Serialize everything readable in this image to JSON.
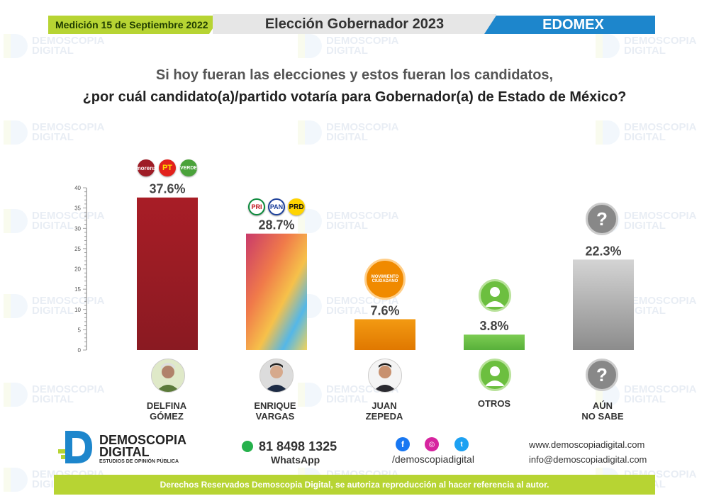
{
  "header": {
    "date_label": "Medición 15 de Septiembre 2022",
    "title": "Elección Gobernador 2023",
    "region": "EDOMEX"
  },
  "question": {
    "line1": "Si hoy fueran las elecciones y estos fueran los candidatos,",
    "line2": "¿por cuál candidato(a)/partido votaría para Gobernador(a) de Estado de México?"
  },
  "chart_data": {
    "type": "bar",
    "categories": [
      "DELFINA GÓMEZ",
      "ENRIQUE VARGAS",
      "JUAN ZEPEDA",
      "OTROS",
      "AÚN NO SABE"
    ],
    "values": [
      37.6,
      28.7,
      7.6,
      3.8,
      22.3
    ],
    "value_labels": [
      "37.6%",
      "28.7%",
      "7.6%",
      "3.8%",
      "22.3%"
    ],
    "ylim": [
      0,
      40
    ],
    "yticks": [
      0,
      5,
      10,
      15,
      20,
      25,
      30,
      35,
      40
    ],
    "colors": [
      "#9e1c26",
      "gradient-rainbow",
      "#f08a00",
      "#6cc04a",
      "#a8a8a8"
    ],
    "grid": false
  },
  "candidates": [
    {
      "name_line1": "DELFINA",
      "name_line2": "GÓMEZ",
      "parties": [
        "morena",
        "PT",
        "VERDE"
      ]
    },
    {
      "name_line1": "ENRIQUE",
      "name_line2": "VARGAS",
      "parties": [
        "PRI",
        "PAN",
        "PRD"
      ]
    },
    {
      "name_line1": "JUAN",
      "name_line2": "ZEPEDA",
      "parties": [
        "MOVIMIENTO CIUDADANO"
      ]
    },
    {
      "name_line1": "OTROS",
      "name_line2": "",
      "parties": []
    },
    {
      "name_line1": "AÚN",
      "name_line2": "NO SABE",
      "parties": []
    }
  ],
  "watermark": {
    "line1": "DEMOSCOPIA",
    "line2": "DIGITAL"
  },
  "footer": {
    "brand_line1": "DEMOSCOPIA",
    "brand_line2": "DIGITAL",
    "brand_tagline": "ESTUDIOS DE OPINIÓN PÚBLICA",
    "phone": "81 8498 1325",
    "phone_label": "WhatsApp",
    "social_handle": "/demoscopiadigital",
    "website": "www.demoscopiadigital.com",
    "email": "info@demoscopiadigital.com",
    "rights": "Derechos Reservados Demoscopia Digital, se autoriza reproducción al hacer referencia al autor."
  }
}
